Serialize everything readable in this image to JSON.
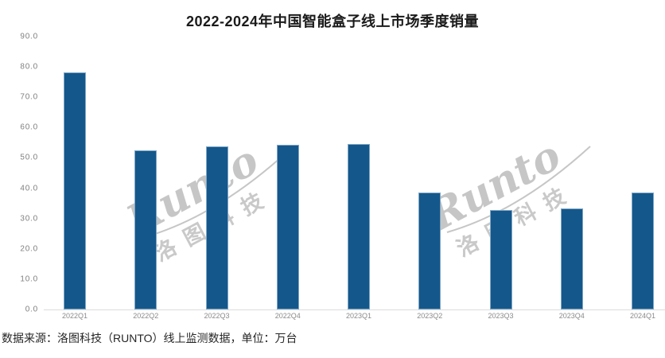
{
  "chart_data": {
    "type": "bar",
    "title": "2022-2024年中国智能盒子线上市场季度销量",
    "categories": [
      "2022Q1",
      "2022Q2",
      "2022Q3",
      "2022Q4",
      "2023Q1",
      "2023Q2",
      "2023Q3",
      "2023Q4",
      "2024Q1"
    ],
    "values": [
      78.3,
      52.5,
      53.9,
      54.4,
      54.6,
      38.7,
      32.9,
      33.3,
      38.6
    ],
    "xlabel": "",
    "ylabel": "",
    "ylim": [
      0,
      90
    ],
    "ytick_interval": 10,
    "ytick_labels": [
      "90.0",
      "80.0",
      "70.0",
      "60.0",
      "50.0",
      "40.0",
      "30.0",
      "20.0",
      "10.0",
      "0.0"
    ],
    "grid": false,
    "legend_position": "none",
    "unit": "万台",
    "colors": {
      "bar_fill": "#14578b",
      "bar_edge": "#7fa7c6",
      "axis_line": "#dcdcdc",
      "tick_label": "#7f7f7f",
      "title": "#1a1a1a"
    }
  },
  "watermark": {
    "brand": "Runto",
    "company": "洛图科技",
    "color": "#c6c6c6"
  },
  "footer": {
    "source_text": "数据来源：洛图科技（RUNTO）线上监测数据，单位：万台"
  }
}
